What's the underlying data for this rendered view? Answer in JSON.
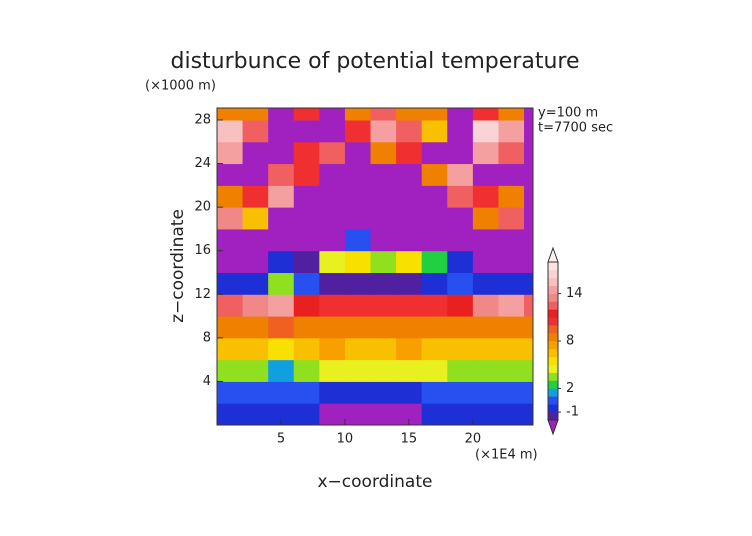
{
  "chart_data": {
    "type": "contour",
    "title": "disturbunce of potential temperature",
    "y_unit": "(×1000 m)",
    "x_unit": "(×1E4 m)",
    "annotations": [
      "y=100 m",
      "t=7700 sec"
    ],
    "x_label": "x−coordinate",
    "y_label": "z−coordinate",
    "xlim": [
      0,
      24.7
    ],
    "ylim": [
      0,
      29.1
    ],
    "xticks": [
      5,
      10,
      15,
      20
    ],
    "yticks": [
      4,
      8,
      12,
      16,
      20,
      24,
      28
    ],
    "xbins": [
      0,
      2,
      4,
      6,
      8,
      10,
      12,
      14,
      16,
      18,
      20,
      22,
      24,
      24.7
    ],
    "zbins": [
      0,
      2,
      4,
      6,
      8,
      10,
      12,
      14,
      16,
      18,
      20,
      22,
      24,
      26,
      28,
      29.1
    ],
    "values": [
      [
        -1,
        -1,
        -1,
        -1,
        -3,
        -3,
        -3,
        -3,
        -1,
        -1,
        -1,
        -1,
        -1
      ],
      [
        0,
        0,
        0,
        0,
        -1,
        -1,
        -1,
        -1,
        0,
        0,
        0,
        0,
        0
      ],
      [
        3,
        3,
        1,
        3,
        4,
        4,
        4,
        4,
        4,
        3,
        3,
        3,
        3
      ],
      [
        6,
        6,
        5,
        6,
        7,
        6,
        6,
        7,
        6,
        6,
        6,
        6,
        6
      ],
      [
        8,
        8,
        9,
        8,
        8,
        8,
        8,
        8,
        8,
        8,
        8,
        8,
        8
      ],
      [
        12,
        13,
        14,
        11,
        10,
        10,
        10,
        10,
        10,
        11,
        13,
        14,
        12
      ],
      [
        -1,
        -1,
        3,
        0,
        -2,
        -2,
        -2,
        -2,
        -1,
        0,
        -1,
        -1,
        -1
      ],
      [
        -3,
        -3,
        -1,
        -2,
        4,
        5,
        3,
        5,
        2,
        -1,
        -3,
        -3,
        -3
      ],
      [
        -3,
        -3,
        -3,
        -3,
        -3,
        0,
        -3,
        -3,
        -3,
        -3,
        -3,
        -3,
        -3
      ],
      [
        13,
        6,
        -3,
        -3,
        -3,
        -3,
        -3,
        -3,
        -3,
        -3,
        8,
        12,
        -3
      ],
      [
        8,
        10,
        14,
        -3,
        -3,
        -3,
        -3,
        -3,
        -3,
        12,
        10,
        8,
        -3
      ],
      [
        -3,
        -3,
        12,
        10,
        -3,
        -3,
        -3,
        -3,
        8,
        14,
        -3,
        -3,
        -3
      ],
      [
        14,
        -3,
        -3,
        10,
        12,
        -3,
        8,
        10,
        -3,
        -3,
        14,
        12,
        -3
      ],
      [
        15,
        12,
        -3,
        -3,
        -3,
        10,
        14,
        12,
        6,
        -3,
        16,
        14,
        -3
      ],
      [
        8,
        8,
        -3,
        10,
        -3,
        8,
        12,
        8,
        8,
        -3,
        10,
        8,
        -3
      ]
    ],
    "levels": [
      -2,
      -1,
      0,
      1,
      2,
      3,
      4,
      5,
      6,
      7,
      8,
      9,
      10,
      11,
      12,
      13,
      14,
      15,
      16,
      17,
      18
    ],
    "colors": [
      "#a020c0",
      "#5020a0",
      "#1e2fd6",
      "#2850f0",
      "#10a0e0",
      "#20d040",
      "#90e020",
      "#e8f020",
      "#f8e000",
      "#f8c000",
      "#f8a000",
      "#f08000",
      "#f06020",
      "#f03030",
      "#e82020",
      "#f06060",
      "#f08888",
      "#f4a0a0",
      "#f8c0c0",
      "#fad4d4",
      "#fce4e4",
      "#fff0f0"
    ],
    "colorbar_ticks": [
      -1,
      2,
      8,
      14
    ]
  }
}
